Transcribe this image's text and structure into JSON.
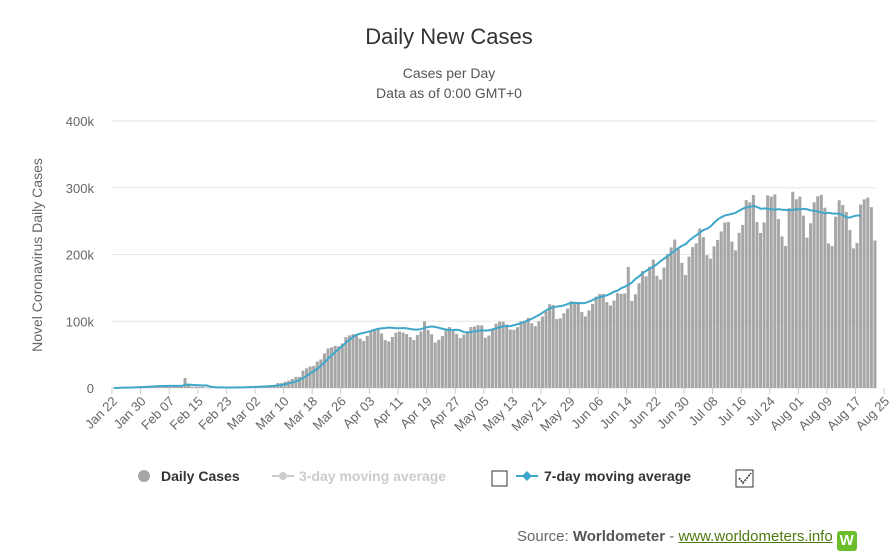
{
  "title": "Daily New Cases",
  "subtitle_line1": "Cases per Day",
  "subtitle_line2": "Data as of 0:00 GMT+0",
  "colors": {
    "bars": "#a6a6a6",
    "bar_stroke": "#ffffff",
    "line7": "#3fa7c9",
    "line3_disabled": "#cccccc",
    "grid": "#e6e6e6",
    "axis_text": "#666666",
    "title_text": "#333333"
  },
  "legend": {
    "items": [
      {
        "label": "Daily Cases",
        "enabled": true,
        "icon": "circle-icon"
      },
      {
        "label": "3-day moving average",
        "enabled": false,
        "icon": "line-marker-icon"
      },
      {
        "label": "7-day moving average",
        "enabled": true,
        "icon": "line-marker-icon"
      }
    ],
    "checkbox3": false,
    "checkbox7": true
  },
  "source": {
    "prefix": "Source: ",
    "name": "Worldometer",
    "separator": " - ",
    "link": "www.worldometers.info",
    "logo_letter": "W"
  },
  "chart_data": {
    "type": "bar",
    "title": "Daily New Cases",
    "subtitle": "Cases per Day",
    "ylabel": "Novel Coronavirus Daily Cases",
    "ylim": [
      0,
      400000
    ],
    "yticks": [
      0,
      100000,
      200000,
      300000,
      400000
    ],
    "ytick_labels": [
      "0",
      "100k",
      "200k",
      "300k",
      "400k"
    ],
    "xticks": [
      "Jan 22",
      "Jan 30",
      "Feb 07",
      "Feb 15",
      "Feb 23",
      "Mar 02",
      "Mar 10",
      "Mar 18",
      "Mar 26",
      "Apr 03",
      "Apr 11",
      "Apr 19",
      "Apr 27",
      "May 05",
      "May 13",
      "May 21",
      "May 29",
      "Jun 06",
      "Jun 14",
      "Jun 22",
      "Jun 30",
      "Jul 08",
      "Jul 16",
      "Jul 24",
      "Aug 01",
      "Aug 09",
      "Aug 17",
      "Aug 25"
    ],
    "x_start": "Jan 22",
    "x_end": "Aug 30",
    "grid": true,
    "legend_position": "bottom",
    "series": [
      {
        "name": "Daily Cases",
        "type": "bar",
        "values": [
          0,
          100,
          600,
          700,
          800,
          1600,
          1500,
          2000,
          2100,
          2600,
          2800,
          3200,
          3900,
          3700,
          3200,
          3400,
          2700,
          3000,
          2500,
          2000,
          15100,
          6500,
          2100,
          2000,
          1900,
          1800,
          600,
          400,
          600,
          500,
          1100,
          400,
          300,
          900,
          1000,
          1400,
          1700,
          1900,
          2000,
          2100,
          2300,
          2600,
          3200,
          4200,
          4400,
          4000,
          7400,
          7300,
          9400,
          11000,
          13500,
          16700,
          16700,
          26000,
          29500,
          32200,
          33100,
          39700,
          42800,
          51700,
          59300,
          60800,
          63100,
          62400,
          66700,
          76400,
          78900,
          80800,
          79800,
          73900,
          70500,
          78000,
          84900,
          86400,
          88700,
          81800,
          71700,
          69600,
          76500,
          82900,
          84600,
          83200,
          80900,
          76300,
          72000,
          79300,
          84700,
          99800,
          87000,
          80500,
          68000,
          72300,
          77800,
          86400,
          91100,
          85700,
          81000,
          74700,
          80000,
          84900,
          91300,
          92100,
          94100,
          93800,
          75400,
          78600,
          86900,
          96400,
          99600,
          99200,
          95100,
          87500,
          87300,
          91000,
          99700,
          100800,
          105000,
          97000,
          92700,
          100000,
          107000,
          114700,
          125500,
          124300,
          103300,
          104400,
          112000,
          118900,
          130000,
          128200,
          128600,
          113900,
          107200,
          116200,
          125800,
          136900,
          140900,
          140900,
          128800,
          123600,
          131000,
          142000,
          141000,
          141500,
          181500,
          130300,
          140300,
          157000,
          175200,
          167400,
          181500,
          192300,
          168200,
          162400,
          180500,
          200500,
          210600,
          222300,
          208500,
          187400,
          169300,
          196800,
          211000,
          216700,
          238900,
          226100,
          199000,
          193900,
          212200,
          221900,
          234600,
          248000,
          248600,
          219400,
          206300,
          232500,
          244200,
          281500,
          278200,
          289100,
          248600,
          232300,
          248100,
          288600,
          286800,
          290000,
          253200,
          227000,
          212900,
          269500,
          294000,
          282700,
          286700,
          258200,
          225300,
          246800,
          278300,
          287300,
          289400,
          270100,
          216600,
          212800,
          256700,
          281300,
          274100,
          263600,
          236600,
          209200,
          217400,
          274800,
          282600,
          285200,
          270900,
          221000
        ]
      },
      {
        "name": "7-day moving average",
        "type": "line",
        "values": [
          0,
          100,
          400,
          500,
          600,
          700,
          900,
          1100,
          1300,
          1600,
          1900,
          2300,
          2700,
          2900,
          3000,
          3100,
          3200,
          3200,
          3100,
          3100,
          4900,
          4900,
          4600,
          4300,
          4100,
          3800,
          3900,
          2000,
          1300,
          1000,
          900,
          800,
          700,
          700,
          800,
          900,
          1000,
          1200,
          1400,
          1500,
          1700,
          2000,
          2200,
          2500,
          2900,
          3300,
          4000,
          4700,
          5600,
          6800,
          8200,
          10100,
          12100,
          14900,
          18200,
          22000,
          25400,
          29200,
          33600,
          38800,
          44000,
          49300,
          54300,
          58900,
          63500,
          68200,
          72600,
          76800,
          79900,
          81600,
          82700,
          84000,
          85500,
          87400,
          88800,
          89400,
          89900,
          90600,
          90100,
          89600,
          89500,
          89800,
          89400,
          88400,
          87600,
          87500,
          88300,
          90100,
          91600,
          92200,
          91400,
          90200,
          88600,
          87700,
          86900,
          87000,
          87300,
          86200,
          83700,
          83300,
          84000,
          84800,
          85700,
          86500,
          86000,
          86400,
          87900,
          89400,
          91000,
          92400,
          92800,
          92700,
          94200,
          95700,
          97200,
          99300,
          101400,
          103900,
          106700,
          109500,
          113000,
          116400,
          119500,
          120900,
          122000,
          122700,
          123900,
          125900,
          127500,
          127500,
          127300,
          127000,
          127600,
          129600,
          131900,
          134400,
          136300,
          137600,
          139000,
          141500,
          144400,
          146000,
          149700,
          151700,
          154900,
          158300,
          163800,
          167500,
          172400,
          175700,
          179400,
          181900,
          185700,
          190300,
          194000,
          197800,
          202000,
          205800,
          209900,
          213100,
          215700,
          221000,
          225200,
          229000,
          233100,
          236800,
          238700,
          242400,
          247900,
          252800,
          255900,
          258600,
          259700,
          261000,
          262700,
          265800,
          268800,
          270600,
          271600,
          272600,
          271100,
          268500,
          269000,
          268700,
          267700,
          267300,
          267900,
          267100,
          266700,
          266400,
          266800,
          267900,
          267600,
          268600,
          267600,
          266000,
          265600,
          264200,
          263000,
          261700,
          262500,
          261500,
          261300,
          261000,
          259000,
          255500,
          255500,
          257400,
          258500,
          258200
        ]
      }
    ]
  }
}
